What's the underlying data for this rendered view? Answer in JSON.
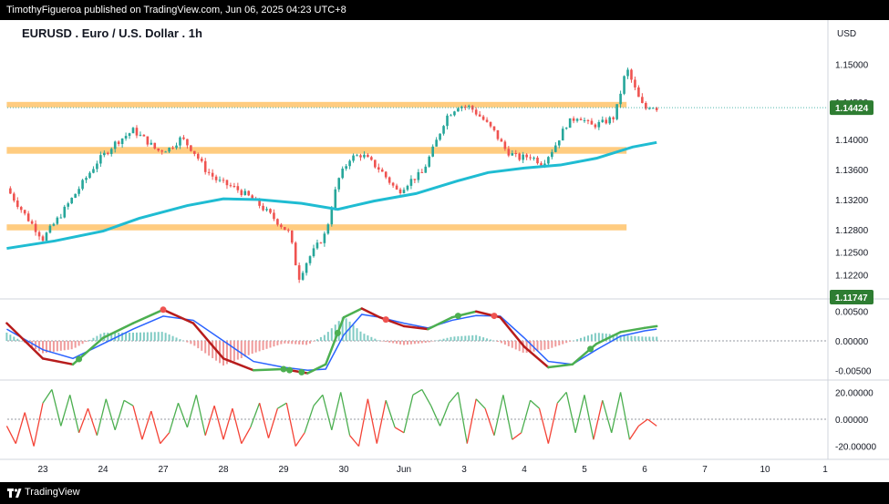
{
  "publish_line": "TimothyFigueroa published on TradingView.com, Jun 06, 2025 04:23 UTC+8",
  "symbol_title": "EURUSD . Euro / U.S. Dollar . 1h",
  "currency": "USD",
  "footer_brand": "TradingView",
  "icon_names": [
    "tradingview-logo-icon"
  ],
  "colors": {
    "up_candle": "#26a69a",
    "down_candle": "#ef5350",
    "ma_line": "#1fbcd2",
    "zone": "#ffcc80",
    "last_price_badge": "#2e7d32",
    "osc_fast": "#4caf50",
    "osc_fast_down": "#b71c1c",
    "osc_slow": "#2962ff",
    "rsi_up": "#4caf50",
    "rsi_down": "#f44336"
  },
  "chart_data": [
    {
      "type": "candlestick",
      "title": "EURUSD . Euro / U.S. Dollar . 1h",
      "y_ticks": [
        "1.15000",
        "1.14500",
        "1.14000",
        "1.13600",
        "1.13200",
        "1.12800",
        "1.12500",
        "1.12200"
      ],
      "ylim": [
        1.1195,
        1.1525
      ],
      "last_price": "1.14424",
      "second_badge": "1.11747",
      "x_ticks": [
        "23",
        "24",
        "27",
        "28",
        "29",
        "30",
        "Jun",
        "3",
        "4",
        "5",
        "6",
        "7",
        "10",
        "1"
      ],
      "x_tick_day_index": [
        0,
        1,
        2,
        3,
        4,
        5,
        6,
        7,
        8,
        9,
        10,
        11,
        12,
        13
      ],
      "zones": [
        {
          "from_day": -0.6,
          "to_day": 9.7,
          "low": 1.1445,
          "high": 1.145
        },
        {
          "from_day": -0.6,
          "to_day": 9.7,
          "low": 1.1381,
          "high": 1.139
        },
        {
          "from_day": -0.6,
          "to_day": 9.7,
          "low": 1.1279,
          "high": 1.1287
        }
      ],
      "moving_average": {
        "x": [
          -0.6,
          0.2,
          1.0,
          1.6,
          2.4,
          3.0,
          3.6,
          4.3,
          4.9,
          5.5,
          6.2,
          6.9,
          7.4,
          8.0,
          8.6,
          9.2,
          9.8,
          10.2
        ],
        "y": [
          1.1255,
          1.1265,
          1.1278,
          1.1295,
          1.1312,
          1.1321,
          1.132,
          1.1315,
          1.1307,
          1.1318,
          1.1328,
          1.1345,
          1.1356,
          1.1362,
          1.1366,
          1.1375,
          1.139,
          1.1396
        ]
      },
      "close_path": {
        "x": [
          -0.6,
          -0.3,
          0.0,
          0.3,
          0.6,
          0.9,
          1.2,
          1.5,
          1.7,
          1.9,
          2.1,
          2.3,
          2.5,
          2.7,
          2.9,
          3.2,
          3.5,
          3.8,
          4.1,
          4.25,
          4.4,
          4.7,
          4.9,
          5.1,
          5.3,
          5.6,
          5.9,
          6.1,
          6.3,
          6.5,
          6.7,
          6.9,
          7.1,
          7.3,
          7.5,
          7.7,
          7.9,
          8.1,
          8.3,
          8.5,
          8.7,
          8.9,
          9.1,
          9.3,
          9.5,
          9.7,
          9.9,
          10.0,
          10.1,
          10.2
        ],
        "y": [
          1.1335,
          1.13,
          1.1268,
          1.13,
          1.1335,
          1.137,
          1.1395,
          1.1412,
          1.14,
          1.1385,
          1.1388,
          1.1402,
          1.1385,
          1.136,
          1.1345,
          1.1335,
          1.132,
          1.1298,
          1.1275,
          1.1215,
          1.124,
          1.1275,
          1.1345,
          1.1375,
          1.138,
          1.136,
          1.133,
          1.1345,
          1.1355,
          1.139,
          1.143,
          1.1445,
          1.1443,
          1.1428,
          1.141,
          1.1385,
          1.1375,
          1.1378,
          1.1368,
          1.139,
          1.142,
          1.1432,
          1.1418,
          1.1422,
          1.143,
          1.1495,
          1.1455,
          1.144,
          1.1446,
          1.1442
        ]
      }
    },
    {
      "type": "line",
      "name": "oscillator",
      "y_ticks": [
        "0.00500",
        "0.00000",
        "-0.00500"
      ],
      "ylim": [
        -0.0062,
        0.0062
      ],
      "x": [
        -0.6,
        0.0,
        0.5,
        1.0,
        1.5,
        2.0,
        2.5,
        3.0,
        3.5,
        4.0,
        4.4,
        4.7,
        5.0,
        5.3,
        5.6,
        6.0,
        6.4,
        6.8,
        7.2,
        7.6,
        8.0,
        8.4,
        8.8,
        9.2,
        9.6,
        10.0,
        10.2
      ],
      "fast": [
        0.003,
        -0.003,
        -0.004,
        0.0005,
        0.003,
        0.0053,
        0.003,
        -0.003,
        -0.005,
        -0.0048,
        -0.0055,
        -0.004,
        0.004,
        0.0055,
        0.004,
        0.0025,
        0.002,
        0.004,
        0.005,
        0.004,
        -0.001,
        -0.0045,
        -0.004,
        -0.0005,
        0.0015,
        0.0022,
        0.0025
      ],
      "slow": [
        0.002,
        -0.0015,
        -0.003,
        -0.0005,
        0.002,
        0.0042,
        0.0035,
        0.0,
        -0.0035,
        -0.0045,
        -0.005,
        -0.0048,
        0.001,
        0.0045,
        0.004,
        0.003,
        0.0022,
        0.0035,
        0.0043,
        0.0042,
        0.0005,
        -0.0035,
        -0.004,
        -0.0015,
        0.0008,
        0.0017,
        0.002
      ],
      "cross_up_x": [
        0.6,
        4.0,
        4.1,
        4.3,
        4.9,
        6.9,
        9.1
      ],
      "cross_down_x": [
        2.0,
        5.7,
        7.5
      ]
    },
    {
      "type": "line",
      "name": "momentum",
      "y_ticks": [
        "20.00000",
        "0.00000",
        "-20.00000"
      ],
      "ylim": [
        -27,
        27
      ],
      "x": [
        -0.6,
        -0.45,
        -0.3,
        -0.15,
        0.0,
        0.15,
        0.3,
        0.45,
        0.6,
        0.75,
        0.9,
        1.05,
        1.2,
        1.35,
        1.5,
        1.65,
        1.8,
        1.95,
        2.1,
        2.25,
        2.4,
        2.55,
        2.7,
        2.85,
        3.0,
        3.15,
        3.3,
        3.45,
        3.6,
        3.75,
        3.9,
        4.05,
        4.2,
        4.35,
        4.5,
        4.65,
        4.8,
        4.95,
        5.1,
        5.25,
        5.4,
        5.55,
        5.7,
        5.85,
        6.0,
        6.15,
        6.3,
        6.45,
        6.6,
        6.75,
        6.9,
        7.05,
        7.2,
        7.35,
        7.5,
        7.65,
        7.8,
        7.95,
        8.1,
        8.25,
        8.4,
        8.55,
        8.7,
        8.85,
        9.0,
        9.15,
        9.3,
        9.45,
        9.6,
        9.75,
        9.9,
        10.05,
        10.2
      ],
      "y": [
        -5,
        -18,
        5,
        -20,
        12,
        22,
        -5,
        18,
        -10,
        8,
        -12,
        15,
        -8,
        14,
        10,
        -15,
        6,
        -18,
        -10,
        12,
        -6,
        18,
        -12,
        10,
        -15,
        8,
        -18,
        -6,
        12,
        -14,
        8,
        12,
        -20,
        -10,
        10,
        18,
        -8,
        20,
        -12,
        -20,
        15,
        -18,
        14,
        -6,
        -10,
        18,
        22,
        10,
        -5,
        12,
        20,
        -18,
        15,
        8,
        -12,
        18,
        -15,
        -10,
        14,
        8,
        -18,
        12,
        20,
        -10,
        18,
        -15,
        14,
        -10,
        20,
        -15,
        -5,
        0,
        -5
      ]
    }
  ]
}
